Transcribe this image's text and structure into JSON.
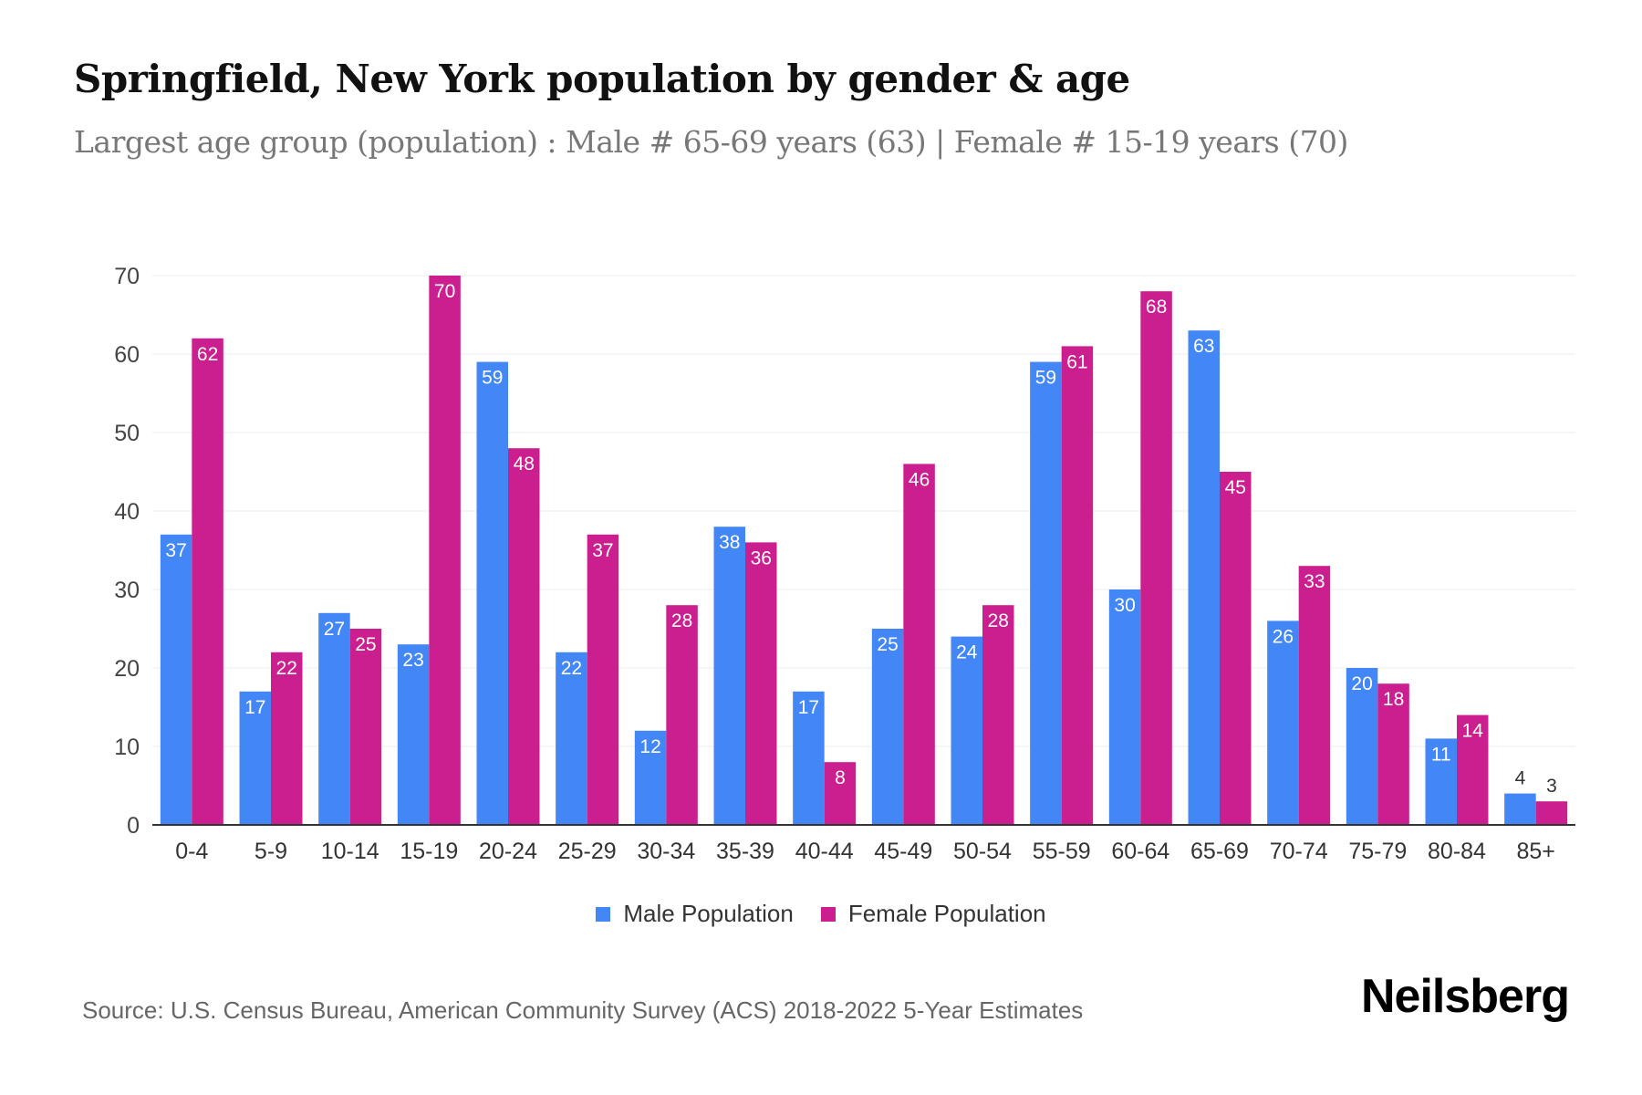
{
  "title": "Springfield, New York population by gender & age",
  "subtitle": "Largest age group (population) : Male # 65-69 years (63) | Female # 15-19 years (70)",
  "source": "Source: U.S. Census Bureau, American Community Survey (ACS) 2018-2022 5-Year Estimates",
  "logo": "Neilsberg",
  "chart_data": {
    "type": "bar",
    "categories": [
      "0-4",
      "5-9",
      "10-14",
      "15-19",
      "20-24",
      "25-29",
      "30-34",
      "35-39",
      "40-44",
      "45-49",
      "50-54",
      "55-59",
      "60-64",
      "65-69",
      "70-74",
      "75-79",
      "80-84",
      "85+"
    ],
    "series": [
      {
        "name": "Male Population",
        "color": "#4287f5",
        "values": [
          37,
          17,
          27,
          23,
          59,
          22,
          12,
          38,
          17,
          25,
          24,
          59,
          30,
          63,
          26,
          20,
          11,
          4
        ]
      },
      {
        "name": "Female Population",
        "color": "#cc1f8f",
        "values": [
          62,
          22,
          25,
          70,
          48,
          37,
          28,
          36,
          8,
          46,
          28,
          61,
          68,
          45,
          33,
          18,
          14,
          3
        ]
      }
    ],
    "yticks": [
      0,
      10,
      20,
      30,
      40,
      50,
      60,
      70
    ],
    "ylim": [
      0,
      70
    ],
    "grid": true,
    "legend": "bottom-center",
    "xlabel": "",
    "ylabel": ""
  }
}
